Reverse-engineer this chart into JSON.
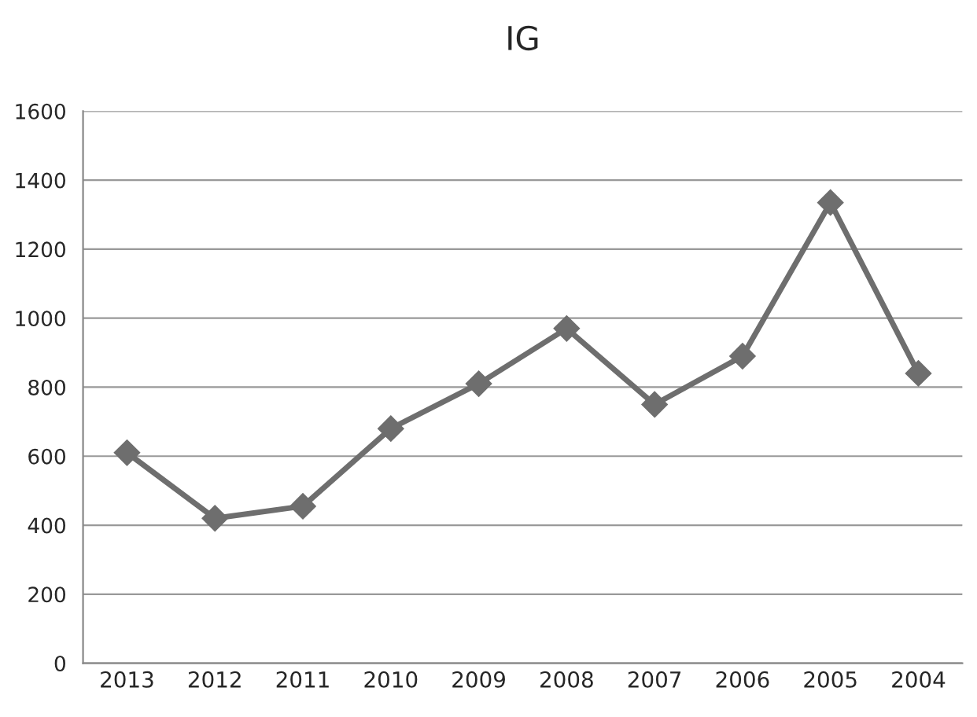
{
  "chart_data": {
    "type": "line",
    "title": "IG",
    "categories": [
      "2013",
      "2012",
      "2011",
      "2010",
      "2009",
      "2008",
      "2007",
      "2006",
      "2005",
      "2004"
    ],
    "series": [
      {
        "color": "#6e6e6e",
        "values": [
          610,
          420,
          455,
          680,
          810,
          970,
          750,
          890,
          1335,
          840
        ]
      }
    ],
    "ylim": [
      0,
      1600
    ],
    "yticks": [
      0,
      200,
      400,
      600,
      800,
      1000,
      1200,
      1400,
      1600
    ],
    "grid": "y",
    "marker": "diamond",
    "line_style": "solid",
    "legend": false
  }
}
